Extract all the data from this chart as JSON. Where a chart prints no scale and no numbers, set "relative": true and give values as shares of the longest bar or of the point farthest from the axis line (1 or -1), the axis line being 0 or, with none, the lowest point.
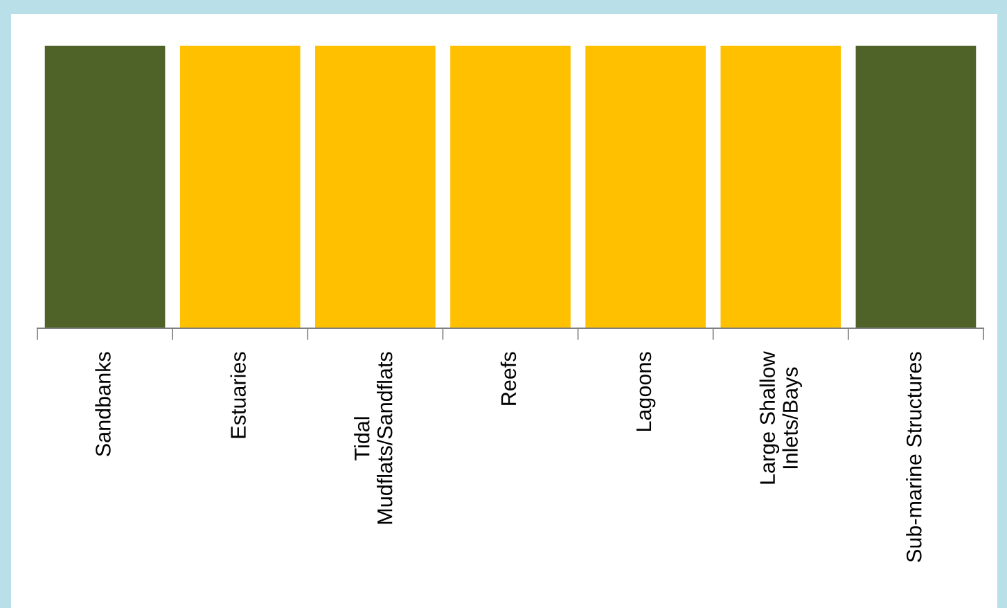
{
  "chart_data": {
    "type": "bar",
    "relative": true,
    "categories": [
      "Sandbanks",
      "Estuaries",
      "Tidal\nMudflats/Sandflats",
      "Reefs",
      "Lagoons",
      "Large Shallow\nInlets/Bays",
      "Sub-marine Structures"
    ],
    "values": [
      1,
      1,
      1,
      1,
      1,
      1,
      1
    ],
    "colors": [
      "#4f6228",
      "#ffc000",
      "#ffc000",
      "#ffc000",
      "#ffc000",
      "#ffc000",
      "#4f6228"
    ]
  }
}
